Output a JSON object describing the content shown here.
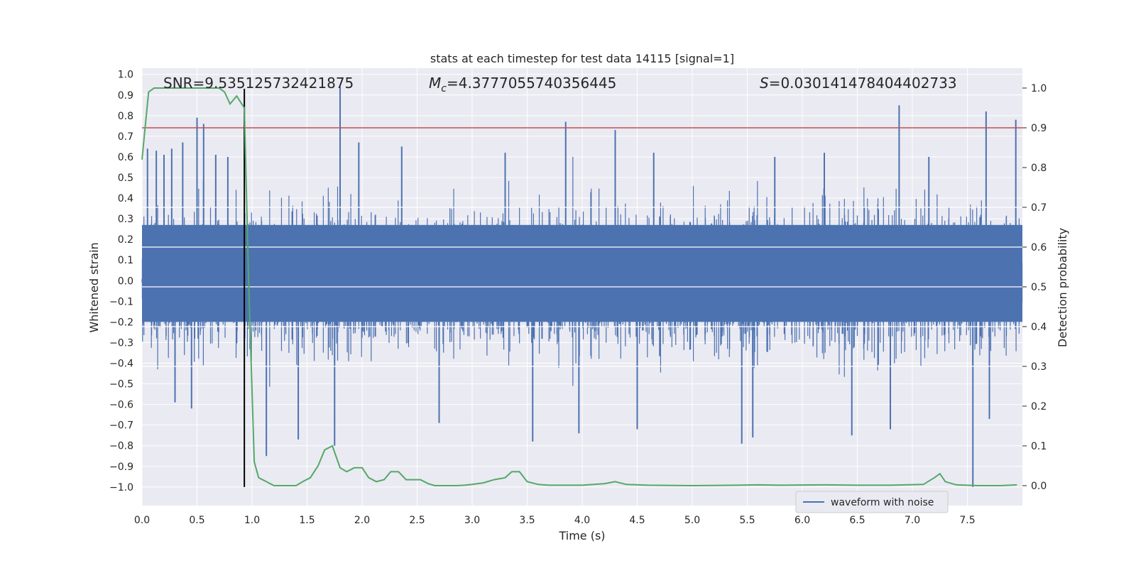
{
  "chart_data": {
    "type": "line",
    "title": "stats at each timestep for test data 14115 [signal=1]",
    "xlabel": "Time (s)",
    "ylabel": "Whitened strain",
    "y2label": "Detection probability",
    "xlim": [
      0.0,
      8.0
    ],
    "ylim": [
      -1.09,
      1.03
    ],
    "y2lim": [
      -0.05,
      1.05
    ],
    "xticks": [
      "0.0",
      "0.5",
      "1.0",
      "1.5",
      "2.0",
      "2.5",
      "3.0",
      "3.5",
      "4.0",
      "4.5",
      "5.0",
      "5.5",
      "6.0",
      "6.5",
      "7.0",
      "7.5"
    ],
    "yticks": [
      "1.0",
      "0.9",
      "0.8",
      "0.7",
      "0.6",
      "0.5",
      "0.4",
      "0.3",
      "0.2",
      "0.1",
      "0.0",
      "-0.1",
      "-0.2",
      "-0.3",
      "-0.4",
      "-0.5",
      "-0.6",
      "-0.7",
      "-0.8",
      "-0.9",
      "-1.0"
    ],
    "y2ticks": [
      "1.0",
      "0.9",
      "0.8",
      "0.7",
      "0.6",
      "0.5",
      "0.4",
      "0.3",
      "0.2",
      "0.1",
      "0.0"
    ],
    "grid": true,
    "legend": {
      "placement": "lower-right",
      "entries": [
        "waveform with noise"
      ]
    },
    "annotations": {
      "snr": "SNR=9.535125732421875",
      "mc_symbol": "M",
      "mc_sub": "c",
      "mc_value": "=4.3777055740356445",
      "s_symbol": "S",
      "s_value": "=0.030141478404402733"
    },
    "threshold_y2": 0.9,
    "marker_x": 0.93,
    "series": [
      {
        "name": "waveform with noise",
        "axis": "left",
        "color": "#4c72b0",
        "core_band": [
          -0.2,
          0.27
        ],
        "typical_envelope": [
          -0.45,
          0.45
        ],
        "spikes": [
          [
            0.05,
            0.64
          ],
          [
            0.13,
            0.63
          ],
          [
            0.2,
            0.61
          ],
          [
            0.27,
            0.64
          ],
          [
            0.37,
            0.67
          ],
          [
            0.5,
            0.79
          ],
          [
            0.56,
            0.76
          ],
          [
            0.67,
            0.61
          ],
          [
            0.78,
            0.6
          ],
          [
            1.8,
            0.94
          ],
          [
            1.97,
            0.67
          ],
          [
            2.36,
            0.65
          ],
          [
            3.3,
            0.62
          ],
          [
            3.85,
            0.77
          ],
          [
            4.3,
            0.73
          ],
          [
            4.65,
            0.62
          ],
          [
            5.75,
            0.6
          ],
          [
            6.2,
            0.62
          ],
          [
            6.88,
            0.85
          ],
          [
            7.15,
            0.6
          ],
          [
            7.67,
            0.82
          ],
          [
            7.94,
            0.78
          ],
          [
            0.3,
            -0.59
          ],
          [
            0.45,
            -0.62
          ],
          [
            1.13,
            -0.85
          ],
          [
            1.42,
            -0.77
          ],
          [
            1.75,
            -0.8
          ],
          [
            2.7,
            -0.69
          ],
          [
            3.55,
            -0.78
          ],
          [
            3.97,
            -0.74
          ],
          [
            4.5,
            -0.72
          ],
          [
            5.45,
            -0.79
          ],
          [
            5.55,
            -0.76
          ],
          [
            6.45,
            -0.75
          ],
          [
            6.8,
            -0.72
          ],
          [
            7.55,
            -1.0
          ],
          [
            7.7,
            -0.67
          ]
        ]
      },
      {
        "name": "",
        "axis": "right",
        "color": "#55a868",
        "x": [
          0.0,
          0.06,
          0.11,
          0.2,
          0.3,
          0.4,
          0.5,
          0.6,
          0.7,
          0.75,
          0.8,
          0.86,
          0.93,
          0.97,
          1.02,
          1.06,
          1.13,
          1.2,
          1.26,
          1.33,
          1.4,
          1.46,
          1.53,
          1.6,
          1.66,
          1.73,
          1.8,
          1.86,
          1.93,
          2.0,
          2.06,
          2.13,
          2.2,
          2.26,
          2.33,
          2.4,
          2.46,
          2.53,
          2.6,
          2.66,
          2.73,
          2.8,
          2.86,
          2.93,
          3.0,
          3.1,
          3.2,
          3.3,
          3.36,
          3.43,
          3.5,
          3.6,
          3.7,
          3.8,
          4.0,
          4.2,
          4.3,
          4.4,
          4.6,
          5.0,
          5.4,
          5.6,
          5.8,
          6.2,
          6.5,
          6.8,
          7.1,
          7.2,
          7.25,
          7.3,
          7.4,
          7.6,
          7.8,
          7.95
        ],
        "y": [
          0.82,
          0.99,
          1.0,
          1.0,
          1.0,
          1.0,
          1.0,
          1.0,
          1.0,
          0.99,
          0.96,
          0.98,
          0.95,
          0.5,
          0.06,
          0.02,
          0.01,
          0.0,
          0.0,
          0.0,
          0.0,
          0.01,
          0.02,
          0.05,
          0.09,
          0.1,
          0.045,
          0.035,
          0.045,
          0.045,
          0.02,
          0.01,
          0.015,
          0.035,
          0.035,
          0.015,
          0.015,
          0.015,
          0.005,
          0.0,
          0.0,
          0.0,
          0.0,
          0.001,
          0.003,
          0.007,
          0.015,
          0.02,
          0.035,
          0.035,
          0.01,
          0.003,
          0.001,
          0.001,
          0.001,
          0.005,
          0.01,
          0.003,
          0.001,
          0.0,
          0.001,
          0.002,
          0.001,
          0.002,
          0.001,
          0.001,
          0.003,
          0.02,
          0.03,
          0.01,
          0.002,
          0.0,
          0.0,
          0.002
        ]
      }
    ]
  },
  "colors": {
    "plot_bg": "#eaeaf2",
    "grid": "#ffffff",
    "waveform": "#4c72b0",
    "probability": "#55a868",
    "threshold": "#c44e52",
    "marker": "#000000"
  }
}
